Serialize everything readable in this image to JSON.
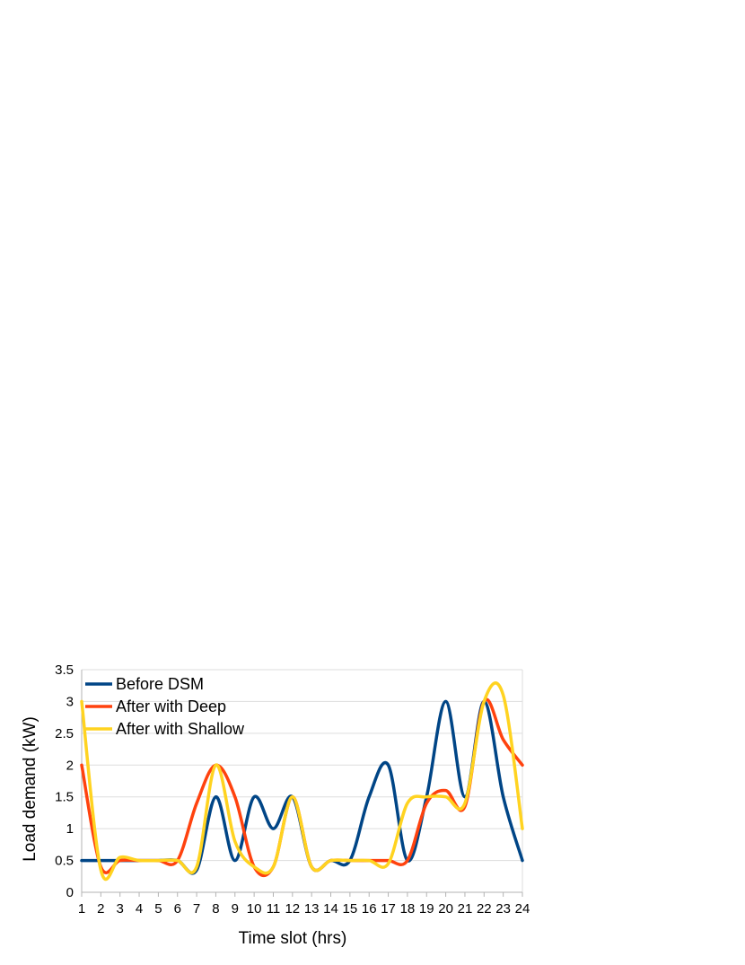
{
  "chart_data": {
    "type": "line",
    "smooth": true,
    "xlabel": "Time slot (hrs)",
    "ylabel": "Load demand (kW)",
    "categories": [
      "1",
      "2",
      "3",
      "4",
      "5",
      "6",
      "7",
      "8",
      "9",
      "10",
      "11",
      "12",
      "13",
      "14",
      "15",
      "16",
      "17",
      "18",
      "19",
      "20",
      "21",
      "22",
      "23",
      "24"
    ],
    "y_ticks": [
      "0",
      "0.5",
      "1",
      "1.5",
      "2",
      "2.5",
      "3",
      "3.5"
    ],
    "ylim": [
      0,
      3.5
    ],
    "grid": "horizontal",
    "legend_position": "top-left",
    "series": [
      {
        "name": "Before DSM",
        "color": "#004586",
        "values": [
          0.5,
          0.5,
          0.5,
          0.5,
          0.5,
          0.5,
          0.35,
          1.5,
          0.5,
          1.5,
          1.0,
          1.5,
          0.4,
          0.5,
          0.5,
          1.5,
          2.0,
          0.5,
          1.5,
          3.0,
          1.5,
          3.0,
          1.5,
          0.5
        ]
      },
      {
        "name": "After with Deep",
        "color": "#ff420e",
        "values": [
          2.0,
          0.4,
          0.5,
          0.5,
          0.5,
          0.5,
          1.4,
          2.0,
          1.5,
          0.4,
          0.4,
          1.5,
          0.4,
          0.5,
          0.5,
          0.5,
          0.5,
          0.5,
          1.4,
          1.6,
          1.35,
          3.0,
          2.4,
          2.0
        ]
      },
      {
        "name": "After with Shallow",
        "color": "#ffd320",
        "values": [
          3.0,
          0.35,
          0.55,
          0.5,
          0.5,
          0.5,
          0.4,
          2.0,
          0.8,
          0.4,
          0.4,
          1.5,
          0.4,
          0.5,
          0.5,
          0.5,
          0.45,
          1.4,
          1.5,
          1.5,
          1.4,
          3.0,
          3.1,
          1.0
        ]
      }
    ]
  }
}
